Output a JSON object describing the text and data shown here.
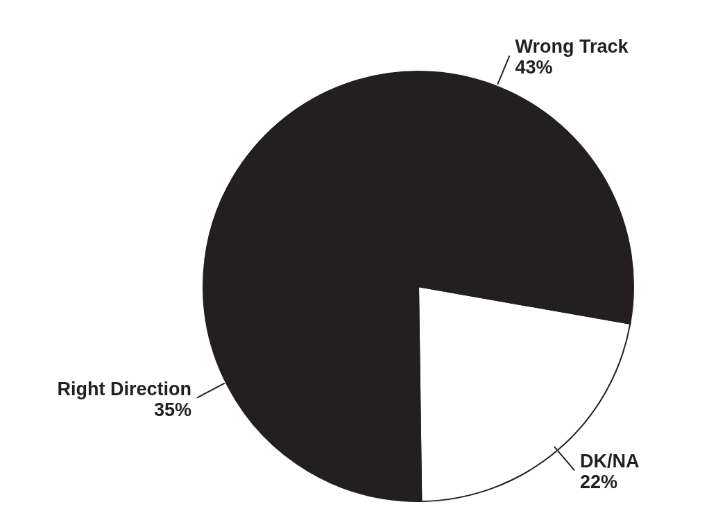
{
  "chart_data": {
    "type": "pie",
    "categories": [
      "DK/NA",
      "Right Direction",
      "Wrong Track"
    ],
    "values": [
      22,
      35,
      43
    ],
    "colors": [
      "#ffffff",
      "#231f20",
      "#231f20"
    ],
    "value_labels": [
      "22%",
      "35%",
      "43%"
    ]
  }
}
